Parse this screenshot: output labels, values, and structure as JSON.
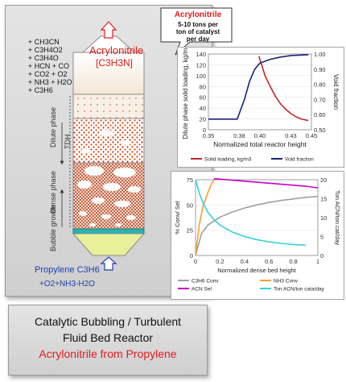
{
  "reactor": {
    "reactants_top": [
      "+ CH3CN",
      "+ C3H4O2",
      "+ C3H4O",
      "+ HCN + CO",
      "+ CO2 + O2",
      "+ NH3 + H2O",
      "+ C3H6"
    ],
    "product_label": "Acrylonitrile",
    "product_formula": "[C3H3N]",
    "feed_label": "Propylene C3H6",
    "feed_extra": "+O2+NH3-H2O",
    "zone_labels": {
      "dilute": "Dilute phase",
      "tdh": "TDH",
      "dense": "Dense phase",
      "bubble": "Bubble growth"
    }
  },
  "callout": {
    "title": "Acrylonitrile",
    "body": [
      "5-10 tons per",
      "ton of catalyst",
      "per day"
    ]
  },
  "caption": {
    "line1": "Catalytic Bubbling / Turbulent",
    "line2": "Fluid Bed Reactor",
    "line3": "Acrylonitrile from Propylene"
  },
  "colors": {
    "red": "#e31b1b",
    "blue": "#1f3fae",
    "dark_blue": "#1a237e",
    "orange": "#f2a033",
    "magenta": "#c800c8",
    "cyan": "#33d0dc",
    "gray": "#a0a0a0"
  },
  "chart_data": [
    {
      "type": "line",
      "xlabel": "Normalized total reactor height",
      "ylabel_left": "Dilute phase solid loading, kg/m3",
      "ylabel_right": "Void fraction",
      "xlim": [
        0.35,
        0.45
      ],
      "ylim_left": [
        0,
        140
      ],
      "ylim_right": [
        0.5,
        1.0
      ],
      "xticks": [
        "0.35",
        "0.38",
        "0.40",
        "0.43",
        "0.45"
      ],
      "yticks_left": [
        "0",
        "20",
        "40",
        "60",
        "80",
        "100",
        "120",
        "140"
      ],
      "yticks_right": [
        "0.50",
        "0.60",
        "0.70",
        "0.80",
        "0.90",
        "1.00"
      ],
      "series": [
        {
          "name": "Solid loading, kg/m3",
          "axis": "left",
          "color": "#c0272d",
          "x": [
            0.399,
            0.402,
            0.405,
            0.41,
            0.415,
            0.42,
            0.425,
            0.43,
            0.435,
            0.44,
            0.447
          ],
          "y": [
            136,
            118,
            100,
            80,
            62,
            48,
            38,
            30,
            24,
            20,
            17
          ]
        },
        {
          "name": "Void fraction",
          "axis": "right",
          "color": "#1a237e",
          "x": [
            0.35,
            0.37,
            0.378,
            0.385,
            0.39,
            0.395,
            0.4,
            0.41,
            0.42,
            0.43,
            0.447
          ],
          "y": [
            0.57,
            0.57,
            0.57,
            0.7,
            0.82,
            0.9,
            0.94,
            0.965,
            0.98,
            0.99,
            0.995
          ]
        }
      ]
    },
    {
      "type": "line",
      "xlabel": "Normalized dense bed height",
      "ylabel_left": "% Conv/ Sel",
      "ylabel_right": "Ton ACN/ton cat/day",
      "xlim": [
        0,
        1
      ],
      "ylim_left": [
        0,
        75
      ],
      "ylim_right": [
        0,
        20
      ],
      "xticks": [
        "0",
        "0.2",
        "0.4",
        "0.6",
        "0.8",
        "1"
      ],
      "yticks_left": [
        "0",
        "25",
        "50",
        "75"
      ],
      "yticks_right": [
        "0",
        "5",
        "10",
        "15",
        "20"
      ],
      "series": [
        {
          "name": "C3H6 Conv",
          "axis": "left",
          "color": "#a0a0a0",
          "x": [
            0,
            0.05,
            0.1,
            0.2,
            0.3,
            0.4,
            0.5,
            0.6,
            0.7,
            0.8,
            0.9,
            1.0
          ],
          "y": [
            0,
            22,
            30,
            38,
            43,
            47,
            50,
            52.5,
            54.5,
            56,
            57.5,
            58.5
          ]
        },
        {
          "name": "NH3 Conv",
          "axis": "left",
          "color": "#f2a033",
          "x": [
            0,
            0.03,
            0.06,
            0.1,
            0.13,
            0.16
          ],
          "y": [
            0,
            30,
            48,
            62,
            71,
            76
          ]
        },
        {
          "name": "ACN Sel",
          "axis": "left",
          "color": "#c800c8",
          "x": [
            0.15,
            0.3,
            0.5,
            0.7,
            0.9,
            1.0
          ],
          "y": [
            76,
            74.5,
            72.5,
            70.5,
            68.5,
            67
          ]
        },
        {
          "name": "Ton ACN/ton cata/day",
          "axis": "right",
          "color": "#33d0dc",
          "x": [
            0,
            0.03,
            0.06,
            0.1,
            0.15,
            0.2,
            0.3,
            0.4,
            0.5,
            0.6,
            0.7,
            0.8,
            0.9
          ],
          "y": [
            20,
            16.5,
            14,
            11.5,
            9.5,
            8,
            6.2,
            5,
            4.2,
            3.6,
            3.2,
            2.9,
            2.7
          ]
        }
      ]
    }
  ]
}
